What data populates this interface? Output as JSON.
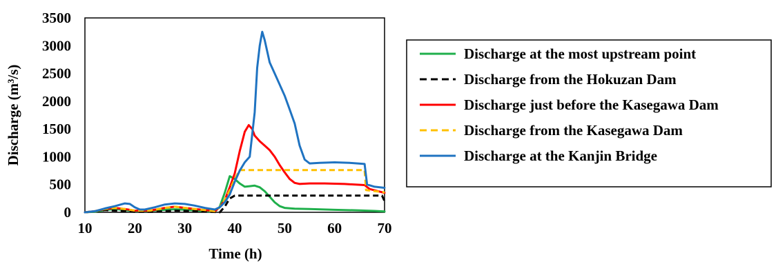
{
  "chart_data": {
    "type": "line",
    "xlabel": "Time (h)",
    "ylabel": "Discharge (m³/s)",
    "xlim": [
      10,
      70
    ],
    "ylim": [
      0,
      3500
    ],
    "x_ticks": [
      "10",
      "20",
      "30",
      "40",
      "50",
      "60",
      "70"
    ],
    "y_ticks": [
      "0",
      "500",
      "1000",
      "1500",
      "2000",
      "2500",
      "3000",
      "3500"
    ],
    "grid": false,
    "legend_placement": "right",
    "series": [
      {
        "name": "Discharge at the most upstream point",
        "color": "#1faf4b",
        "dash": "solid",
        "points": [
          [
            10,
            0
          ],
          [
            12,
            10
          ],
          [
            14,
            40
          ],
          [
            16,
            60
          ],
          [
            18,
            40
          ],
          [
            20,
            20
          ],
          [
            22,
            20
          ],
          [
            25,
            40
          ],
          [
            28,
            55
          ],
          [
            31,
            40
          ],
          [
            34,
            20
          ],
          [
            36,
            10
          ],
          [
            37,
            100
          ],
          [
            38,
            350
          ],
          [
            39,
            650
          ],
          [
            40,
            600
          ],
          [
            41,
            520
          ],
          [
            42,
            460
          ],
          [
            43,
            470
          ],
          [
            44,
            480
          ],
          [
            45,
            450
          ],
          [
            46,
            380
          ],
          [
            47,
            280
          ],
          [
            48,
            180
          ],
          [
            49,
            110
          ],
          [
            50,
            80
          ],
          [
            52,
            65
          ],
          [
            55,
            60
          ],
          [
            60,
            45
          ],
          [
            65,
            35
          ],
          [
            68,
            25
          ],
          [
            70,
            15
          ]
        ]
      },
      {
        "name": "Discharge from the Hokuzan Dam",
        "color": "#000000",
        "dash": "dashed",
        "points": [
          [
            10,
            0
          ],
          [
            12,
            20
          ],
          [
            14,
            40
          ],
          [
            16,
            30
          ],
          [
            18,
            20
          ],
          [
            20,
            10
          ],
          [
            24,
            10
          ],
          [
            28,
            30
          ],
          [
            32,
            20
          ],
          [
            35,
            10
          ],
          [
            37,
            0
          ],
          [
            38,
            100
          ],
          [
            39,
            250
          ],
          [
            40,
            300
          ],
          [
            45,
            300
          ],
          [
            50,
            300
          ],
          [
            55,
            300
          ],
          [
            60,
            300
          ],
          [
            65,
            300
          ],
          [
            69.5,
            300
          ],
          [
            70,
            200
          ]
        ]
      },
      {
        "name": "Discharge just before the Kasegawa Dam",
        "color": "#ff0000",
        "dash": "solid",
        "points": [
          [
            10,
            0
          ],
          [
            12,
            20
          ],
          [
            14,
            60
          ],
          [
            16,
            80
          ],
          [
            18,
            60
          ],
          [
            20,
            30
          ],
          [
            23,
            30
          ],
          [
            26,
            80
          ],
          [
            28,
            100
          ],
          [
            31,
            70
          ],
          [
            34,
            40
          ],
          [
            36,
            20
          ],
          [
            37,
            90
          ],
          [
            38,
            220
          ],
          [
            39,
            450
          ],
          [
            40,
            700
          ],
          [
            41,
            1100
          ],
          [
            42,
            1450
          ],
          [
            42.8,
            1570
          ],
          [
            43.5,
            1500
          ],
          [
            44,
            1380
          ],
          [
            45,
            1280
          ],
          [
            46,
            1200
          ],
          [
            47,
            1120
          ],
          [
            48,
            1000
          ],
          [
            49,
            850
          ],
          [
            50,
            720
          ],
          [
            51,
            600
          ],
          [
            52,
            530
          ],
          [
            53,
            510
          ],
          [
            55,
            520
          ],
          [
            58,
            520
          ],
          [
            62,
            510
          ],
          [
            66,
            490
          ],
          [
            67,
            420
          ],
          [
            70,
            350
          ]
        ]
      },
      {
        "name": "Discharge from the Kasegawa Dam",
        "color": "#ffc000",
        "dash": "dashed",
        "points": [
          [
            10,
            0
          ],
          [
            12,
            20
          ],
          [
            14,
            60
          ],
          [
            16,
            80
          ],
          [
            18,
            60
          ],
          [
            20,
            30
          ],
          [
            23,
            30
          ],
          [
            26,
            80
          ],
          [
            28,
            100
          ],
          [
            31,
            70
          ],
          [
            34,
            40
          ],
          [
            36,
            20
          ],
          [
            37,
            90
          ],
          [
            38,
            220
          ],
          [
            39,
            400
          ],
          [
            40,
            600
          ],
          [
            41,
            760
          ],
          [
            45,
            760
          ],
          [
            50,
            760
          ],
          [
            55,
            760
          ],
          [
            60,
            760
          ],
          [
            65,
            760
          ],
          [
            66,
            760
          ],
          [
            66.3,
            400
          ],
          [
            70,
            360
          ]
        ]
      },
      {
        "name": "Discharge at the Kanjin Bridge",
        "color": "#1f73c1",
        "dash": "solid",
        "points": [
          [
            10,
            0
          ],
          [
            12,
            20
          ],
          [
            14,
            70
          ],
          [
            16,
            110
          ],
          [
            18,
            160
          ],
          [
            19,
            150
          ],
          [
            20,
            90
          ],
          [
            21,
            50
          ],
          [
            22,
            50
          ],
          [
            24,
            90
          ],
          [
            26,
            140
          ],
          [
            28,
            160
          ],
          [
            30,
            150
          ],
          [
            32,
            120
          ],
          [
            34,
            80
          ],
          [
            36,
            50
          ],
          [
            37,
            90
          ],
          [
            38,
            180
          ],
          [
            39,
            320
          ],
          [
            40,
            550
          ],
          [
            41,
            750
          ],
          [
            42,
            900
          ],
          [
            43,
            1000
          ],
          [
            44,
            1800
          ],
          [
            44.5,
            2600
          ],
          [
            45,
            3000
          ],
          [
            45.5,
            3250
          ],
          [
            46,
            3100
          ],
          [
            47,
            2700
          ],
          [
            48,
            2500
          ],
          [
            49,
            2300
          ],
          [
            50,
            2100
          ],
          [
            51,
            1850
          ],
          [
            52,
            1600
          ],
          [
            53,
            1200
          ],
          [
            54,
            950
          ],
          [
            55,
            880
          ],
          [
            57,
            890
          ],
          [
            60,
            900
          ],
          [
            63,
            890
          ],
          [
            66,
            870
          ],
          [
            66.5,
            500
          ],
          [
            68,
            460
          ],
          [
            70,
            440
          ]
        ]
      }
    ]
  }
}
